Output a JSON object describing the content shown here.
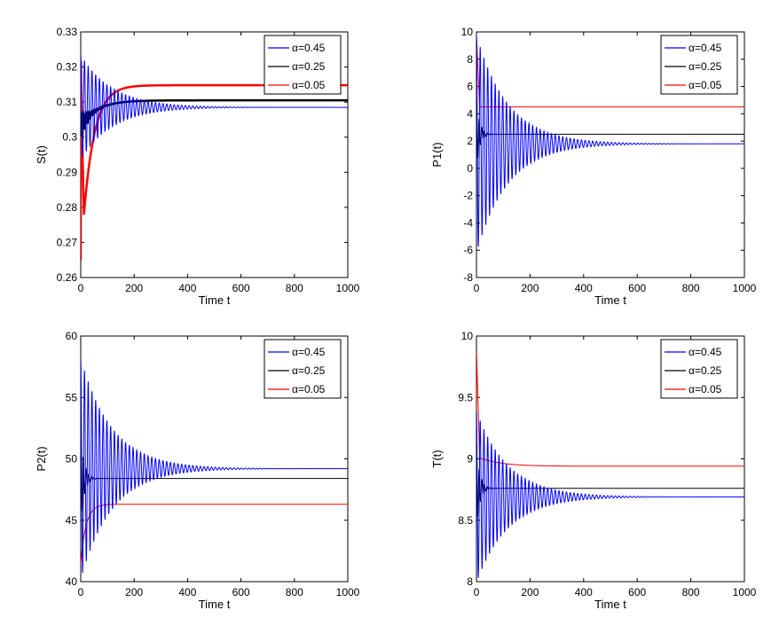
{
  "chart_data": [
    {
      "type": "line",
      "ylabel": "S(t)",
      "xlabel": "Time t",
      "xlim": [
        0,
        1000
      ],
      "ylim": [
        0.26,
        0.33
      ],
      "xticks": [
        "0",
        "200",
        "400",
        "600",
        "800",
        "1000"
      ],
      "yticks": [
        "0.26",
        "0.27",
        "0.28",
        "0.29",
        "0.3",
        "0.31",
        "0.32",
        "0.33"
      ],
      "legend_position": "top-right",
      "series": [
        {
          "name": "α=0.45",
          "color": "#0000ff",
          "start": 0.293,
          "end": 0.3085,
          "amplitude": 0.015,
          "decay": 0.0085,
          "period": 14,
          "settle": 0
        },
        {
          "name": "α=0.25",
          "color": "#000000",
          "start": 0.303,
          "end": 0.3105,
          "amplitude": 0.004,
          "decay": 0.04,
          "period": 10,
          "settle": 60
        },
        {
          "name": "α=0.05",
          "color": "#ff0000",
          "start": 0.265,
          "end": 0.3148,
          "amplitude": 0.0,
          "decay": 0.0,
          "period": 10,
          "settle": 40,
          "spike": 0.324
        }
      ]
    },
    {
      "type": "line",
      "ylabel": "P1(t)",
      "xlabel": "Time t",
      "xlim": [
        0,
        1000
      ],
      "ylim": [
        -8,
        10
      ],
      "xticks": [
        "0",
        "200",
        "400",
        "600",
        "800",
        "1000"
      ],
      "yticks": [
        "-8",
        "-6",
        "-4",
        "-2",
        "0",
        "2",
        "4",
        "6",
        "8",
        "10"
      ],
      "legend_position": "top-right",
      "series": [
        {
          "name": "α=0.45",
          "color": "#0000ff",
          "start": 1.8,
          "end": 1.8,
          "amplitude": 8.0,
          "decay": 0.0085,
          "period": 14,
          "settle": 0
        },
        {
          "name": "α=0.25",
          "color": "#000000",
          "start": 2.5,
          "end": 2.5,
          "amplitude": 2.5,
          "decay": 0.08,
          "period": 10,
          "settle": 0
        },
        {
          "name": "α=0.05",
          "color": "#ff0000",
          "start": 4.5,
          "end": 4.5,
          "amplitude": 0.0,
          "decay": 0.0,
          "period": 10,
          "settle": 0,
          "spike": 9.8
        }
      ]
    },
    {
      "type": "line",
      "ylabel": "P2(t)",
      "xlabel": "Time t",
      "xlim": [
        0,
        1000
      ],
      "ylim": [
        40,
        60
      ],
      "xticks": [
        "0",
        "200",
        "400",
        "600",
        "800",
        "1000"
      ],
      "yticks": [
        "40",
        "45",
        "50",
        "55",
        "60"
      ],
      "legend_position": "top-right",
      "series": [
        {
          "name": "α=0.45",
          "color": "#0000ff",
          "start": 49.2,
          "end": 49.2,
          "amplitude": 9.0,
          "decay": 0.0085,
          "period": 14,
          "settle": 0
        },
        {
          "name": "α=0.25",
          "color": "#000000",
          "start": 48.4,
          "end": 48.4,
          "amplitude": 4.0,
          "decay": 0.08,
          "period": 10,
          "settle": 0
        },
        {
          "name": "α=0.05",
          "color": "#ff0000",
          "start": 41.5,
          "end": 46.3,
          "amplitude": 0.0,
          "decay": 0.0,
          "period": 10,
          "settle": 20
        }
      ]
    },
    {
      "type": "line",
      "ylabel": "T(t)",
      "xlabel": "Time t",
      "xlim": [
        0,
        1000
      ],
      "ylim": [
        8,
        10
      ],
      "xticks": [
        "0",
        "200",
        "400",
        "600",
        "800",
        "1000"
      ],
      "yticks": [
        "8",
        "8.5",
        "9",
        "9.5",
        "10"
      ],
      "legend_position": "top-right",
      "series": [
        {
          "name": "α=0.45",
          "color": "#0000ff",
          "start": 8.69,
          "end": 8.69,
          "amplitude": 0.7,
          "decay": 0.0085,
          "period": 14,
          "settle": 0
        },
        {
          "name": "α=0.25",
          "color": "#000000",
          "start": 8.76,
          "end": 8.76,
          "amplitude": 0.35,
          "decay": 0.08,
          "period": 10,
          "settle": 0
        },
        {
          "name": "α=0.05",
          "color": "#ff0000",
          "start": 9.02,
          "end": 8.94,
          "amplitude": 0.0,
          "decay": 0.0,
          "period": 10,
          "settle": 80,
          "spike": 9.9
        }
      ]
    }
  ]
}
